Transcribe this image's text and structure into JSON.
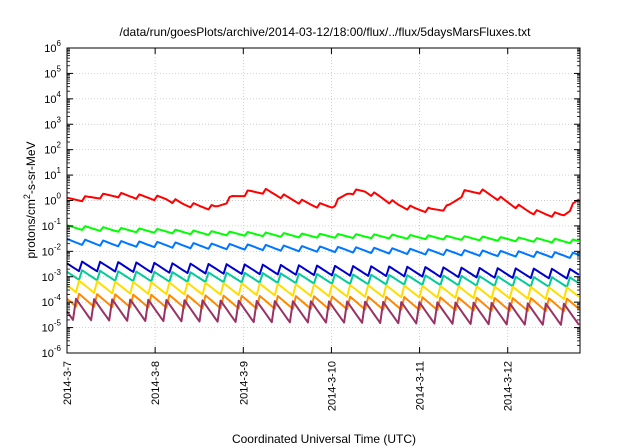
{
  "chart_data": {
    "type": "line",
    "title": "/data/run/goesPlots/archive/2014-03-12/18:00/flux/../flux/5daysMarsFluxes.txt",
    "xlabel": "Coordinated Universal Time (UTC)",
    "ylabel_base": "protons/cm",
    "ylabel_sup": "2",
    "ylabel_rest": "-s-sr-MeV",
    "yscale": "log",
    "ylim_exp": [
      -6,
      6
    ],
    "y_tick_base": "10",
    "y_tick_exponents": [
      "-6",
      "-5",
      "-4",
      "-3",
      "-2",
      "-1",
      "0",
      "1",
      "2",
      "3",
      "4",
      "5",
      "6"
    ],
    "x_ticks": [
      "2014-3-7",
      "2014-3-8",
      "2014-3-9",
      "2014-3-10",
      "2014-3-11",
      "2014-3-12"
    ],
    "xlim_days": [
      0,
      5.82
    ],
    "grid": true,
    "sawtooth_period_days": 0.205,
    "series": [
      {
        "color": "#ff0000",
        "values_log10": [
          0.0,
          0.05,
          0.15,
          0.2,
          0.15,
          0.1,
          0.05,
          -0.15,
          -0.25,
          -0.3,
          0.1,
          0.3,
          0.35,
          0.15,
          -0.05,
          -0.2,
          -0.25,
          0.3,
          0.35,
          0.1,
          -0.2,
          -0.35,
          -0.4,
          -0.3,
          0.3,
          0.35,
          0.1,
          -0.2,
          -0.45,
          -0.55,
          -0.6,
          0.05
        ],
        "amp": 0.22
      },
      {
        "color": "#00ff00",
        "values_log10": [
          -1.05,
          -1.15,
          -1.2,
          -1.28,
          -1.32,
          -1.38,
          -1.4,
          -1.42,
          -1.46,
          -1.5,
          -1.55,
          -1.62
        ],
        "amp": 0.18
      },
      {
        "color": "#0077ff",
        "values_log10": [
          -1.6,
          -1.68,
          -1.72,
          -1.78,
          -1.82,
          -1.88,
          -1.92,
          -1.97,
          -2.02,
          -2.06,
          -2.1,
          -2.15
        ],
        "amp": 0.25
      },
      {
        "color": "#0000cc",
        "values_log10": [
          -2.6,
          -2.62,
          -2.66,
          -2.7,
          -2.72,
          -2.75,
          -2.78,
          -2.8,
          -2.83,
          -2.86,
          -2.88,
          -2.9
        ],
        "amp": 0.45
      },
      {
        "color": "#00cc99",
        "values_log10": [
          -2.9,
          -2.95,
          -2.98,
          -3.0,
          -3.02,
          -3.05,
          -3.08,
          -3.1,
          -3.12,
          -3.15,
          -3.18,
          -3.2
        ],
        "amp": 0.45
      },
      {
        "color": "#ffdd00",
        "values_log10": [
          -3.4,
          -3.45,
          -3.48,
          -3.5,
          -3.52,
          -3.55,
          -3.58,
          -3.6,
          -3.62,
          -3.64,
          -3.66,
          -3.68
        ],
        "amp": 0.55
      },
      {
        "color": "#ff8800",
        "values_log10": [
          -3.9,
          -3.93,
          -3.95,
          -3.97,
          -3.99,
          -4.0,
          -4.02,
          -4.03,
          -4.05,
          -4.07,
          -4.08,
          -4.1
        ],
        "amp": 0.6
      },
      {
        "color": "#993366",
        "values_log10": [
          -4.35,
          -4.38,
          -4.4,
          -4.42,
          -4.44,
          -4.45,
          -4.46,
          -4.48,
          -4.5,
          -4.52,
          -4.54,
          -4.55
        ],
        "amp": 1.0
      }
    ]
  }
}
